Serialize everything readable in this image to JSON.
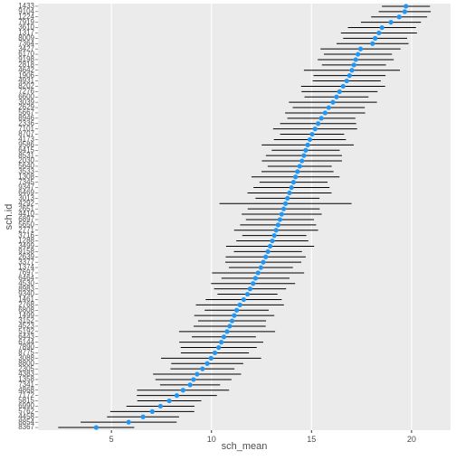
{
  "chart_data": {
    "type": "errorpoint",
    "x_label": "sch_mean",
    "y_label": "sch.id",
    "categories": [
      "8367",
      "8854",
      "4458",
      "5762",
      "6990",
      "5815",
      "7172",
      "4868",
      "7341",
      "1358",
      "4383",
      "2305",
      "8800",
      "3088",
      "8775",
      "7890",
      "6144",
      "6443",
      "5192",
      "4523",
      "3152",
      "1499",
      "6808",
      "2768",
      "1461",
      "9340",
      "8983",
      "4530",
      "6464",
      "7697",
      "1374",
      "3377",
      "2639",
      "9158",
      "3499",
      "1288",
      "3716",
      "2771",
      "5650",
      "6897",
      "4410",
      "2651",
      "4292",
      "3013",
      "6469",
      "9347",
      "7345",
      "1308",
      "3533",
      "5640",
      "2030",
      "8531",
      "6415",
      "9586",
      "4173",
      "8707",
      "7101",
      "2336",
      "8946",
      "5667",
      "2629",
      "3039",
      "6600",
      "7276",
      "8202",
      "4931",
      "1906",
      "4642",
      "2818",
      "9198",
      "6170",
      "3427",
      "7364",
      "8009",
      "1317",
      "3610",
      "7919",
      "1224",
      "9104",
      "1433"
    ],
    "values": [
      4.24,
      5.86,
      6.58,
      7.04,
      7.45,
      7.89,
      8.27,
      8.58,
      8.93,
      9.1,
      9.28,
      9.55,
      9.79,
      9.98,
      10.17,
      10.36,
      10.49,
      10.62,
      10.78,
      10.91,
      11.03,
      11.14,
      11.26,
      11.42,
      11.61,
      11.8,
      11.93,
      12.08,
      12.2,
      12.33,
      12.47,
      12.59,
      12.71,
      12.82,
      12.93,
      13.04,
      13.14,
      13.23,
      13.33,
      13.42,
      13.51,
      13.61,
      13.7,
      13.8,
      13.9,
      14.0,
      14.1,
      14.2,
      14.3,
      14.41,
      14.52,
      14.62,
      14.71,
      14.81,
      14.92,
      15.03,
      15.18,
      15.33,
      15.49,
      15.68,
      15.86,
      16.07,
      16.25,
      16.4,
      16.58,
      16.76,
      16.9,
      17.02,
      17.12,
      17.21,
      17.32,
      17.45,
      18.05,
      18.18,
      18.37,
      18.52,
      18.97,
      19.38,
      19.66,
      19.72
    ],
    "errors": [
      1.9,
      2.4,
      1.8,
      2.1,
      1.7,
      1.6,
      2.0,
      2.3,
      1.5,
      1.9,
      2.2,
      1.6,
      1.8,
      2.5,
      1.7,
      1.9,
      2.1,
      1.6,
      2.4,
      1.8,
      1.7,
      2.0,
      1.6,
      2.2,
      1.9,
      1.5,
      1.8,
      2.1,
      1.7,
      2.3,
      1.6,
      1.9,
      2.0,
      1.7,
      2.2,
      1.8,
      1.6,
      2.1,
      1.9,
      1.7,
      2.0,
      1.8,
      3.3,
      1.6,
      2.1,
      1.9,
      1.7,
      2.2,
      1.8,
      1.6,
      2.0,
      1.9,
      1.7,
      2.3,
      1.8,
      1.6,
      2.1,
      1.9,
      1.7,
      2.0,
      1.8,
      2.2,
      1.6,
      1.9,
      2.1,
      1.7,
      1.8,
      2.4,
      1.6,
      1.9,
      1.7,
      2.0,
      1.8,
      1.6,
      1.9,
      1.7,
      1.5,
      1.4,
      1.3,
      1.2
    ],
    "color": "#2196f3",
    "xlim": [
      1.33,
      21.95
    ],
    "xticks": [
      5,
      10,
      15,
      20
    ],
    "grid": true
  }
}
